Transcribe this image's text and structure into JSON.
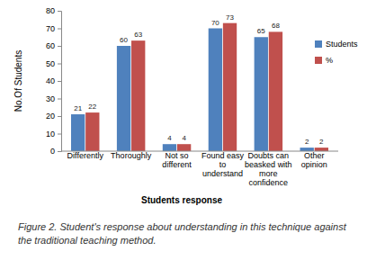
{
  "chart_data": {
    "type": "bar",
    "caption": "Figure 2. Student's response about understanding in this technique against the traditional teaching method.",
    "x_label": "Students response",
    "y_label": "No.Of Students",
    "categories": [
      "Differently",
      "Thoroughly",
      "Not so different",
      "Found easy to understand",
      "Doubts can beasked with more confidence",
      "Other opinion"
    ],
    "series": [
      {
        "name": "Students",
        "color": "#4f81bd",
        "values": [
          21,
          60,
          4,
          70,
          65,
          2
        ]
      },
      {
        "name": "%",
        "color": "#c0504d",
        "values": [
          22,
          63,
          4,
          73,
          68,
          2
        ]
      }
    ],
    "ylim": [
      0,
      80
    ],
    "yticks": [
      0,
      10,
      20,
      30,
      40,
      50,
      60,
      70,
      80
    ],
    "grid": false,
    "legend": "right",
    "data_labels": true
  }
}
